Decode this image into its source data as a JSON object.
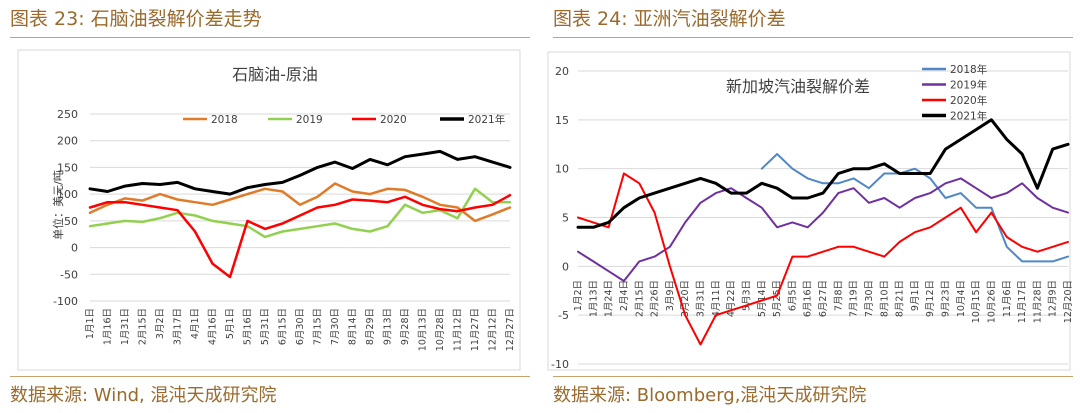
{
  "figures": {
    "left_title": "图表 23: 石脑油裂解价差走势",
    "right_title": "图表 24: 亚洲汽油裂解价差",
    "left_source": "数据来源: Wind, 混沌天成研究院",
    "right_source": "数据来源: Bloomberg,混沌天成研究院"
  },
  "colors": {
    "accent": "#9b6a2c",
    "s2018": "#e07b29",
    "s2019": "#92d050",
    "s2020": "#ff0000",
    "s2021": "#000000",
    "r2018": "#4f87c7",
    "r2019": "#7030a0"
  },
  "chart_data": [
    {
      "type": "line",
      "title": "石脑油-原油",
      "ylabel": "单位：美元/吨",
      "ylim": [
        -100,
        250
      ],
      "yticks": [
        "250",
        "200",
        "150",
        "100",
        "50",
        "0",
        "-50",
        "-100"
      ],
      "grid": true,
      "legend_position": "top",
      "x": [
        "1月1日",
        "1月16日",
        "1月31日",
        "2月15日",
        "3月2日",
        "3月17日",
        "4月1日",
        "4月16日",
        "5月1日",
        "5月16日",
        "5月31日",
        "6月15日",
        "6月30日",
        "7月15日",
        "7月30日",
        "8月14日",
        "8月29日",
        "9月13日",
        "9月28日",
        "10月13日",
        "10月28日",
        "11月12日",
        "11月27日",
        "12月12日",
        "12月27日"
      ],
      "series": [
        {
          "name": "2018",
          "values": [
            65,
            80,
            92,
            88,
            100,
            90,
            85,
            80,
            90,
            100,
            110,
            105,
            80,
            95,
            120,
            105,
            100,
            110,
            108,
            95,
            80,
            75,
            50,
            62,
            75
          ]
        },
        {
          "name": "2019",
          "values": [
            40,
            45,
            50,
            48,
            55,
            65,
            60,
            50,
            45,
            40,
            20,
            30,
            35,
            40,
            45,
            35,
            30,
            40,
            80,
            65,
            70,
            55,
            110,
            85,
            85
          ]
        },
        {
          "name": "2020",
          "values": [
            75,
            85,
            85,
            80,
            75,
            70,
            30,
            -30,
            -55,
            50,
            35,
            45,
            60,
            75,
            80,
            90,
            88,
            85,
            95,
            80,
            72,
            68,
            75,
            80,
            98
          ]
        },
        {
          "name": "2021年",
          "values": [
            110,
            105,
            115,
            120,
            118,
            122,
            110,
            105,
            100,
            112,
            118,
            122,
            135,
            150,
            160,
            148,
            165,
            155,
            170,
            175,
            180,
            165,
            170,
            160,
            150
          ]
        }
      ]
    },
    {
      "type": "line",
      "title": "新加坡汽油裂解价差",
      "ylim": [
        -10,
        20
      ],
      "yticks": [
        "20",
        "15",
        "10",
        "5",
        "0",
        "-5",
        "-10"
      ],
      "grid": true,
      "legend_position": "top-right",
      "x": [
        "1月2日",
        "1月13日",
        "1月24日",
        "2月4日",
        "2月15日",
        "2月26日",
        "3月9日",
        "3月20日",
        "3月31日",
        "4月11日",
        "4月22日",
        "5月3日",
        "5月14日",
        "5月25日",
        "6月5日",
        "6月16日",
        "6月27日",
        "7月8日",
        "7月19日",
        "7月30日",
        "8月10日",
        "8月21日",
        "9月1日",
        "9月12日",
        "9月23日",
        "10月4日",
        "10月15日",
        "10月26日",
        "11月6日",
        "11月17日",
        "11月28日",
        "12月9日",
        "12月20日"
      ],
      "series": [
        {
          "name": "2018年",
          "values": [
            null,
            null,
            null,
            null,
            null,
            null,
            null,
            null,
            null,
            null,
            null,
            null,
            10,
            11.5,
            10,
            9,
            8.5,
            8.5,
            9,
            8,
            9.5,
            9.5,
            10,
            9,
            7,
            7.5,
            6,
            6,
            2,
            0.5,
            0.5,
            0.5,
            1
          ]
        },
        {
          "name": "2019年",
          "values": [
            1.5,
            0.5,
            -0.5,
            -1.5,
            0.5,
            1,
            2,
            4.5,
            6.5,
            7.5,
            8,
            7,
            6,
            4,
            4.5,
            4,
            5.5,
            7.5,
            8,
            6.5,
            7,
            6,
            7,
            7.5,
            8.5,
            9,
            8,
            7,
            7.5,
            8.5,
            7,
            6,
            5.5
          ]
        },
        {
          "name": "2020年",
          "values": [
            5,
            4.5,
            4,
            9.5,
            8.5,
            5.5,
            0,
            -5,
            -8,
            -5,
            -4.5,
            -4,
            -3.5,
            -3,
            1,
            1,
            1.5,
            2,
            2,
            1.5,
            1,
            2.5,
            3.5,
            4,
            5,
            6,
            3.5,
            5.5,
            3,
            2,
            1.5,
            2,
            2.5
          ]
        },
        {
          "name": "2021年",
          "values": [
            4,
            4,
            4.5,
            6,
            7,
            7.5,
            8,
            8.5,
            9,
            8.5,
            7.5,
            7.5,
            8.5,
            8,
            7,
            7,
            7.5,
            9.5,
            10,
            10,
            10.5,
            9.5,
            9.5,
            9.5,
            12,
            13,
            14,
            15,
            13,
            11.5,
            8,
            12,
            12.5
          ]
        }
      ]
    }
  ]
}
